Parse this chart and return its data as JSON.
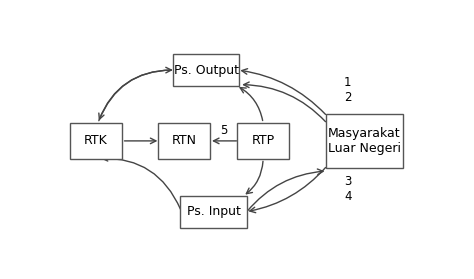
{
  "boxes": {
    "RTK": [
      0.1,
      0.5,
      0.13,
      0.16
    ],
    "RTN": [
      0.34,
      0.5,
      0.13,
      0.16
    ],
    "RTP": [
      0.555,
      0.5,
      0.13,
      0.16
    ],
    "Ps. Output": [
      0.4,
      0.83,
      0.17,
      0.14
    ],
    "Ps. Input": [
      0.42,
      0.17,
      0.17,
      0.14
    ],
    "Masyarakat\nLuar Negeri": [
      0.83,
      0.5,
      0.2,
      0.24
    ]
  },
  "arrow_color": "#444444",
  "font_size": 9,
  "label_font_size": 8.5
}
